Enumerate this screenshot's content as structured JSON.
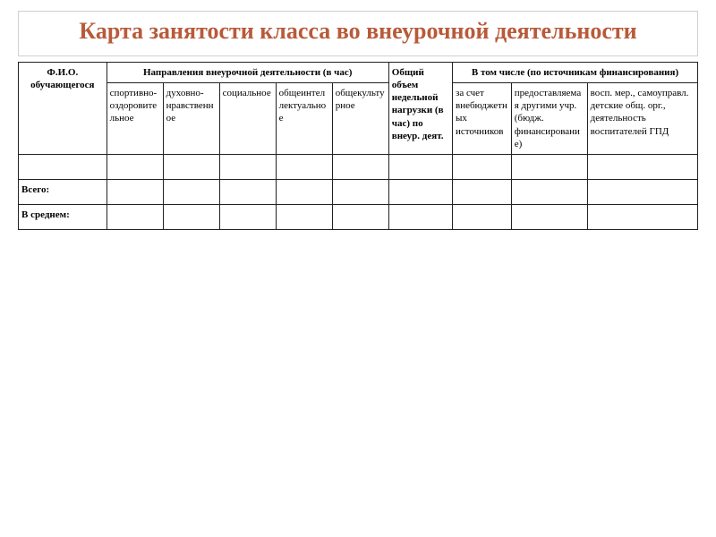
{
  "title": "Карта занятости класса во внеурочной деятельности",
  "colors": {
    "title": "#b85a3a",
    "border": "#000000",
    "title_border": "#d0d0d0",
    "background": "#ffffff"
  },
  "fonts": {
    "title_size": 26,
    "title_weight": "bold",
    "cell_size": 11
  },
  "table": {
    "headers": {
      "fio": "Ф.И.О. обучающегося",
      "directions": "Направления внеурочной деятельности (в час)",
      "total": "Общий объем недельной нагрузки (в час) по внеур. деят.",
      "sources": "В том числе (по источникам финансирования)"
    },
    "direction_cols": {
      "d1": "спортивно-оздоровительное",
      "d2": "духовно-нравственное",
      "d3": "социальное",
      "d4": "общеинтеллектуальное",
      "d5": "общекультурное"
    },
    "source_cols": {
      "s1": "за счет внебюджетных источников",
      "s2": "предоставляемая другими учр. (бюдж. финансирование)",
      "s3": "восп. мер., самоуправл. детские общ. орг., деятельность воспитателей ГПД"
    },
    "row_labels": {
      "empty": "",
      "total": "Всего:",
      "average": "В среднем:"
    }
  }
}
